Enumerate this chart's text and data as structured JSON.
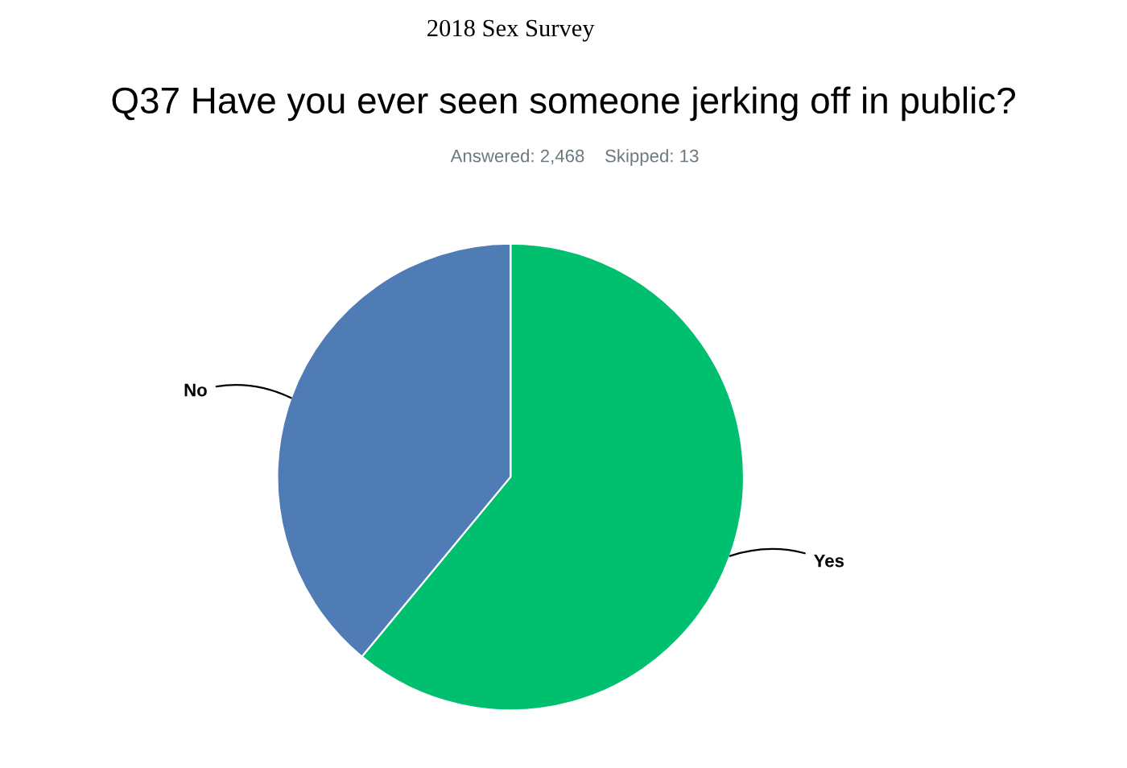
{
  "chart_data": {
    "type": "pie",
    "title": "Q37 Have you ever seen someone jerking off in public?",
    "subtitle": "Answered: 2,468    Skipped: 13",
    "annotations": [
      "2018 Sex Survey"
    ],
    "categories": [
      "Yes",
      "No"
    ],
    "values": [
      61,
      39
    ],
    "colors": [
      "#00bf6f",
      "#507cb6"
    ]
  }
}
